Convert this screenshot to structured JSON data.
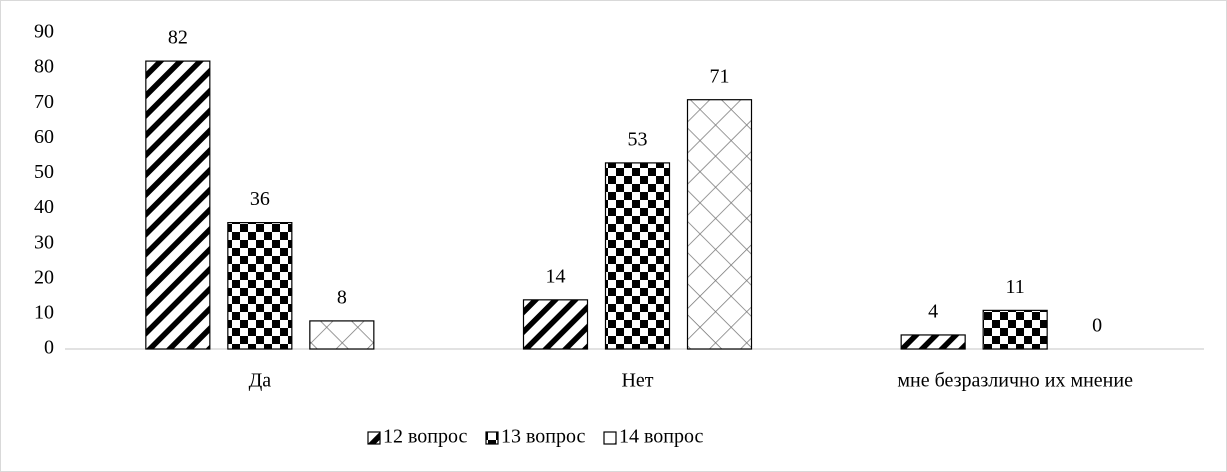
{
  "chart_data": {
    "type": "bar",
    "categories": [
      "Да",
      "Нет",
      "мне безразлично их мнение"
    ],
    "series": [
      {
        "name": "12 вопрос",
        "color": "#000000",
        "pattern": "diagonal",
        "values": [
          82,
          14,
          4
        ]
      },
      {
        "name": "13 вопрос",
        "color": "#000000",
        "pattern": "checker",
        "values": [
          36,
          53,
          11
        ]
      },
      {
        "name": "14 вопрос",
        "color": "#000000",
        "pattern": "lattice",
        "values": [
          8,
          71,
          0
        ]
      }
    ],
    "ylim": [
      0,
      90
    ],
    "yticks": [
      0,
      10,
      20,
      30,
      40,
      50,
      60,
      70,
      80,
      90
    ],
    "grid": false,
    "legend": "bottom"
  }
}
